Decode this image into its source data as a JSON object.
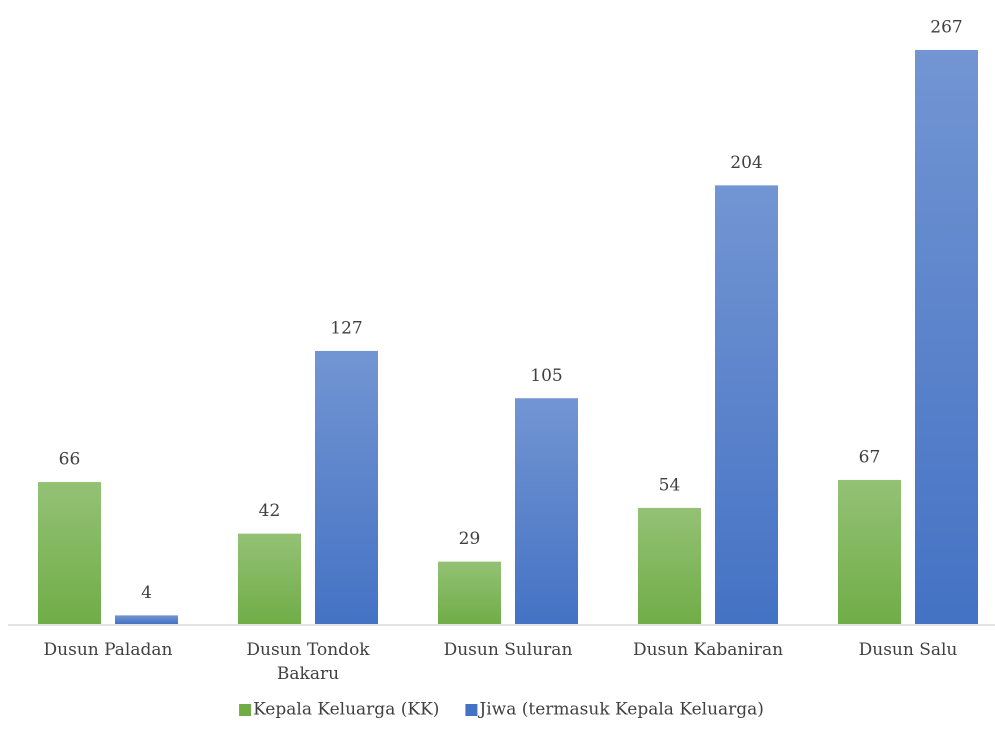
{
  "chart_data": {
    "type": "bar",
    "categories": [
      "Dusun Paladan",
      "Dusun Tondok Bakaru",
      "Dusun Suluran",
      "Dusun Kabaniran",
      "Dusun Salu"
    ],
    "series": [
      {
        "name": "Kepala Keluarga (KK)",
        "color": "#70ad47",
        "values": [
          66,
          42,
          29,
          54,
          67
        ]
      },
      {
        "name": "Jiwa (termasuk Kepala Keluarga)",
        "color": "#4472c4",
        "values": [
          4,
          127,
          105,
          204,
          267
        ]
      }
    ],
    "ylim": [
      0,
      280
    ],
    "legend": "bottom"
  }
}
